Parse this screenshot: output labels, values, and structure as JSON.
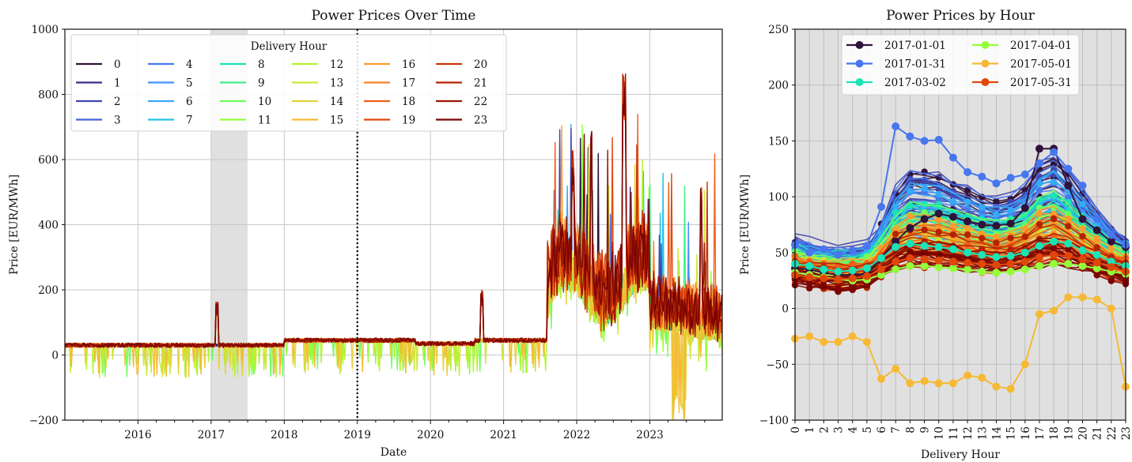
{
  "chart_data": [
    {
      "type": "line",
      "title": "Power Prices Over Time",
      "xlabel": "Date",
      "ylabel": "Price [EUR/MWh]",
      "xlim": [
        2015.0,
        2023.99
      ],
      "ylim": [
        -200,
        1000
      ],
      "x_ticks": [
        2016,
        2017,
        2018,
        2019,
        2020,
        2021,
        2022,
        2023
      ],
      "x_tick_labels": [
        "2016",
        "2017",
        "2018",
        "2019",
        "2020",
        "2021",
        "2022",
        "2023"
      ],
      "y_ticks": [
        -200,
        0,
        200,
        400,
        600,
        800,
        1000
      ],
      "y_tick_labels": [
        "−200",
        "0",
        "200",
        "400",
        "600",
        "800",
        "1000"
      ],
      "shaded_span": [
        2017.0,
        2017.5
      ],
      "vline": 2019.0,
      "legend": {
        "title": "Delivery Hour",
        "location": "top-left",
        "columns": 6,
        "entries": [
          "0",
          "1",
          "2",
          "3",
          "4",
          "5",
          "6",
          "7",
          "8",
          "9",
          "10",
          "11",
          "12",
          "13",
          "14",
          "15",
          "16",
          "17",
          "18",
          "19",
          "20",
          "21",
          "22",
          "23"
        ]
      },
      "series_note": "24 hourly price series, one per delivery hour 0-23",
      "series_colors": [
        "#30123b",
        "#3e2a86",
        "#4145ab",
        "#4662d7",
        "#4776ee",
        "#4490fe",
        "#36aaf9",
        "#23c3e4",
        "#1ae4b6",
        "#3ef08a",
        "#6efd61",
        "#92ff3a",
        "#b1f532",
        "#cde734",
        "#e5d23b",
        "#f6b935",
        "#fe9b2d",
        "#fb7f25",
        "#f05f18",
        "#e0470a",
        "#cb3404",
        "#b42302",
        "#9a1602",
        "#7a0403"
      ],
      "key_points": [
        {
          "x": 2015.0,
          "y": 30
        },
        {
          "x": 2016.0,
          "y": 32
        },
        {
          "x": 2017.0,
          "y": 50
        },
        {
          "x": 2017.08,
          "y": 160
        },
        {
          "x": 2018.0,
          "y": 40
        },
        {
          "x": 2019.0,
          "y": 55
        },
        {
          "x": 2020.0,
          "y": 25
        },
        {
          "x": 2020.7,
          "y": 190
        },
        {
          "x": 2021.0,
          "y": 55
        },
        {
          "x": 2021.75,
          "y": 420
        },
        {
          "x": 2022.0,
          "y": 620
        },
        {
          "x": 2022.2,
          "y": 700
        },
        {
          "x": 2022.65,
          "y": 870
        },
        {
          "x": 2023.0,
          "y": 140
        },
        {
          "x": 2023.45,
          "y": -200
        },
        {
          "x": 2023.7,
          "y": 525
        },
        {
          "x": 2023.99,
          "y": 60
        }
      ]
    },
    {
      "type": "line",
      "title": "Power Prices by Hour",
      "xlabel": "Delivery Hour",
      "ylabel": "Price [EUR/MWh]",
      "xlim": [
        0,
        23
      ],
      "ylim": [
        -100,
        250
      ],
      "x": [
        0,
        1,
        2,
        3,
        4,
        5,
        6,
        7,
        8,
        9,
        10,
        11,
        12,
        13,
        14,
        15,
        16,
        17,
        18,
        19,
        20,
        21,
        22,
        23
      ],
      "x_tick_labels": [
        "0",
        "1",
        "2",
        "3",
        "4",
        "5",
        "6",
        "7",
        "8",
        "9",
        "10",
        "11",
        "12",
        "13",
        "14",
        "15",
        "16",
        "17",
        "18",
        "19",
        "20",
        "21",
        "22",
        "23"
      ],
      "y_ticks": [
        -100,
        -50,
        0,
        50,
        100,
        150,
        200,
        250
      ],
      "y_tick_labels": [
        "−100",
        "−50",
        "0",
        "50",
        "100",
        "150",
        "200",
        "250"
      ],
      "legend": {
        "location": "top-center",
        "columns": 2,
        "entries_order": [
          "2017-01-01",
          "2017-01-31",
          "2017-03-02",
          "2017-04-01",
          "2017-05-01",
          "2017-05-31"
        ]
      },
      "series": [
        {
          "name": "2017-01-01",
          "color": "#30123b",
          "values": [
            36,
            35,
            32,
            30,
            30,
            31,
            45,
            60,
            72,
            80,
            85,
            82,
            78,
            75,
            74,
            76,
            90,
            143,
            143,
            110,
            80,
            70,
            60,
            55
          ]
        },
        {
          "name": "2017-01-31",
          "color": "#4776ee",
          "values": [
            57,
            50,
            53,
            48,
            52,
            56,
            91,
            163,
            154,
            150,
            151,
            135,
            122,
            118,
            112,
            117,
            120,
            130,
            140,
            125,
            110,
            80,
            66,
            57
          ]
        },
        {
          "name": "2017-03-02",
          "color": "#1ae4b6",
          "values": [
            40,
            38,
            35,
            33,
            34,
            36,
            45,
            55,
            58,
            56,
            55,
            53,
            50,
            48,
            46,
            47,
            50,
            56,
            60,
            58,
            52,
            48,
            42,
            38
          ]
        },
        {
          "name": "2017-04-01",
          "color": "#92ff3a",
          "values": [
            32,
            30,
            28,
            26,
            25,
            26,
            30,
            35,
            38,
            38,
            37,
            36,
            35,
            33,
            32,
            33,
            35,
            38,
            40,
            40,
            38,
            36,
            33,
            31
          ]
        },
        {
          "name": "2017-05-01",
          "color": "#f6b935",
          "values": [
            -27,
            -25,
            -30,
            -30,
            -25,
            -30,
            -63,
            -54,
            -67,
            -65,
            -67,
            -67,
            -60,
            -62,
            -70,
            -72,
            -50,
            -5,
            -2,
            10,
            10,
            8,
            0,
            -70
          ]
        },
        {
          "name": "2017-05-31",
          "color": "#e0470a",
          "values": [
            30,
            28,
            27,
            26,
            27,
            29,
            35,
            42,
            45,
            44,
            43,
            42,
            41,
            40,
            39,
            40,
            42,
            46,
            48,
            47,
            44,
            41,
            37,
            33
          ]
        }
      ]
    }
  ]
}
